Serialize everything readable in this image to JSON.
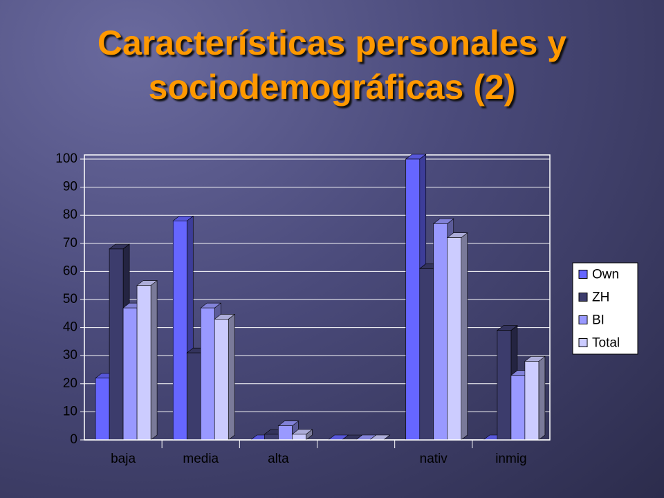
{
  "chart_data": {
    "type": "bar3d",
    "title": "Características personales y sociodemográficas (2)",
    "categories": [
      "baja",
      "media",
      "alta",
      null,
      "nativ",
      "inmig"
    ],
    "series": [
      {
        "name": "Own",
        "color": "#6666ff",
        "values": [
          22,
          78,
          0,
          0,
          100,
          0
        ]
      },
      {
        "name": "ZH",
        "color": "#3c3c6c",
        "values": [
          68,
          31,
          2,
          0,
          61,
          39
        ]
      },
      {
        "name": "BI",
        "color": "#9999ff",
        "values": [
          47,
          47,
          5,
          0,
          77,
          23
        ]
      },
      {
        "name": "Total",
        "color": "#ccccff",
        "values": [
          55,
          43,
          2,
          0,
          72,
          28
        ]
      }
    ],
    "ylim": [
      0,
      100
    ],
    "yticks": [
      0,
      10,
      20,
      30,
      40,
      50,
      60,
      70,
      80,
      90,
      100
    ],
    "grid": true,
    "legend": "right"
  }
}
